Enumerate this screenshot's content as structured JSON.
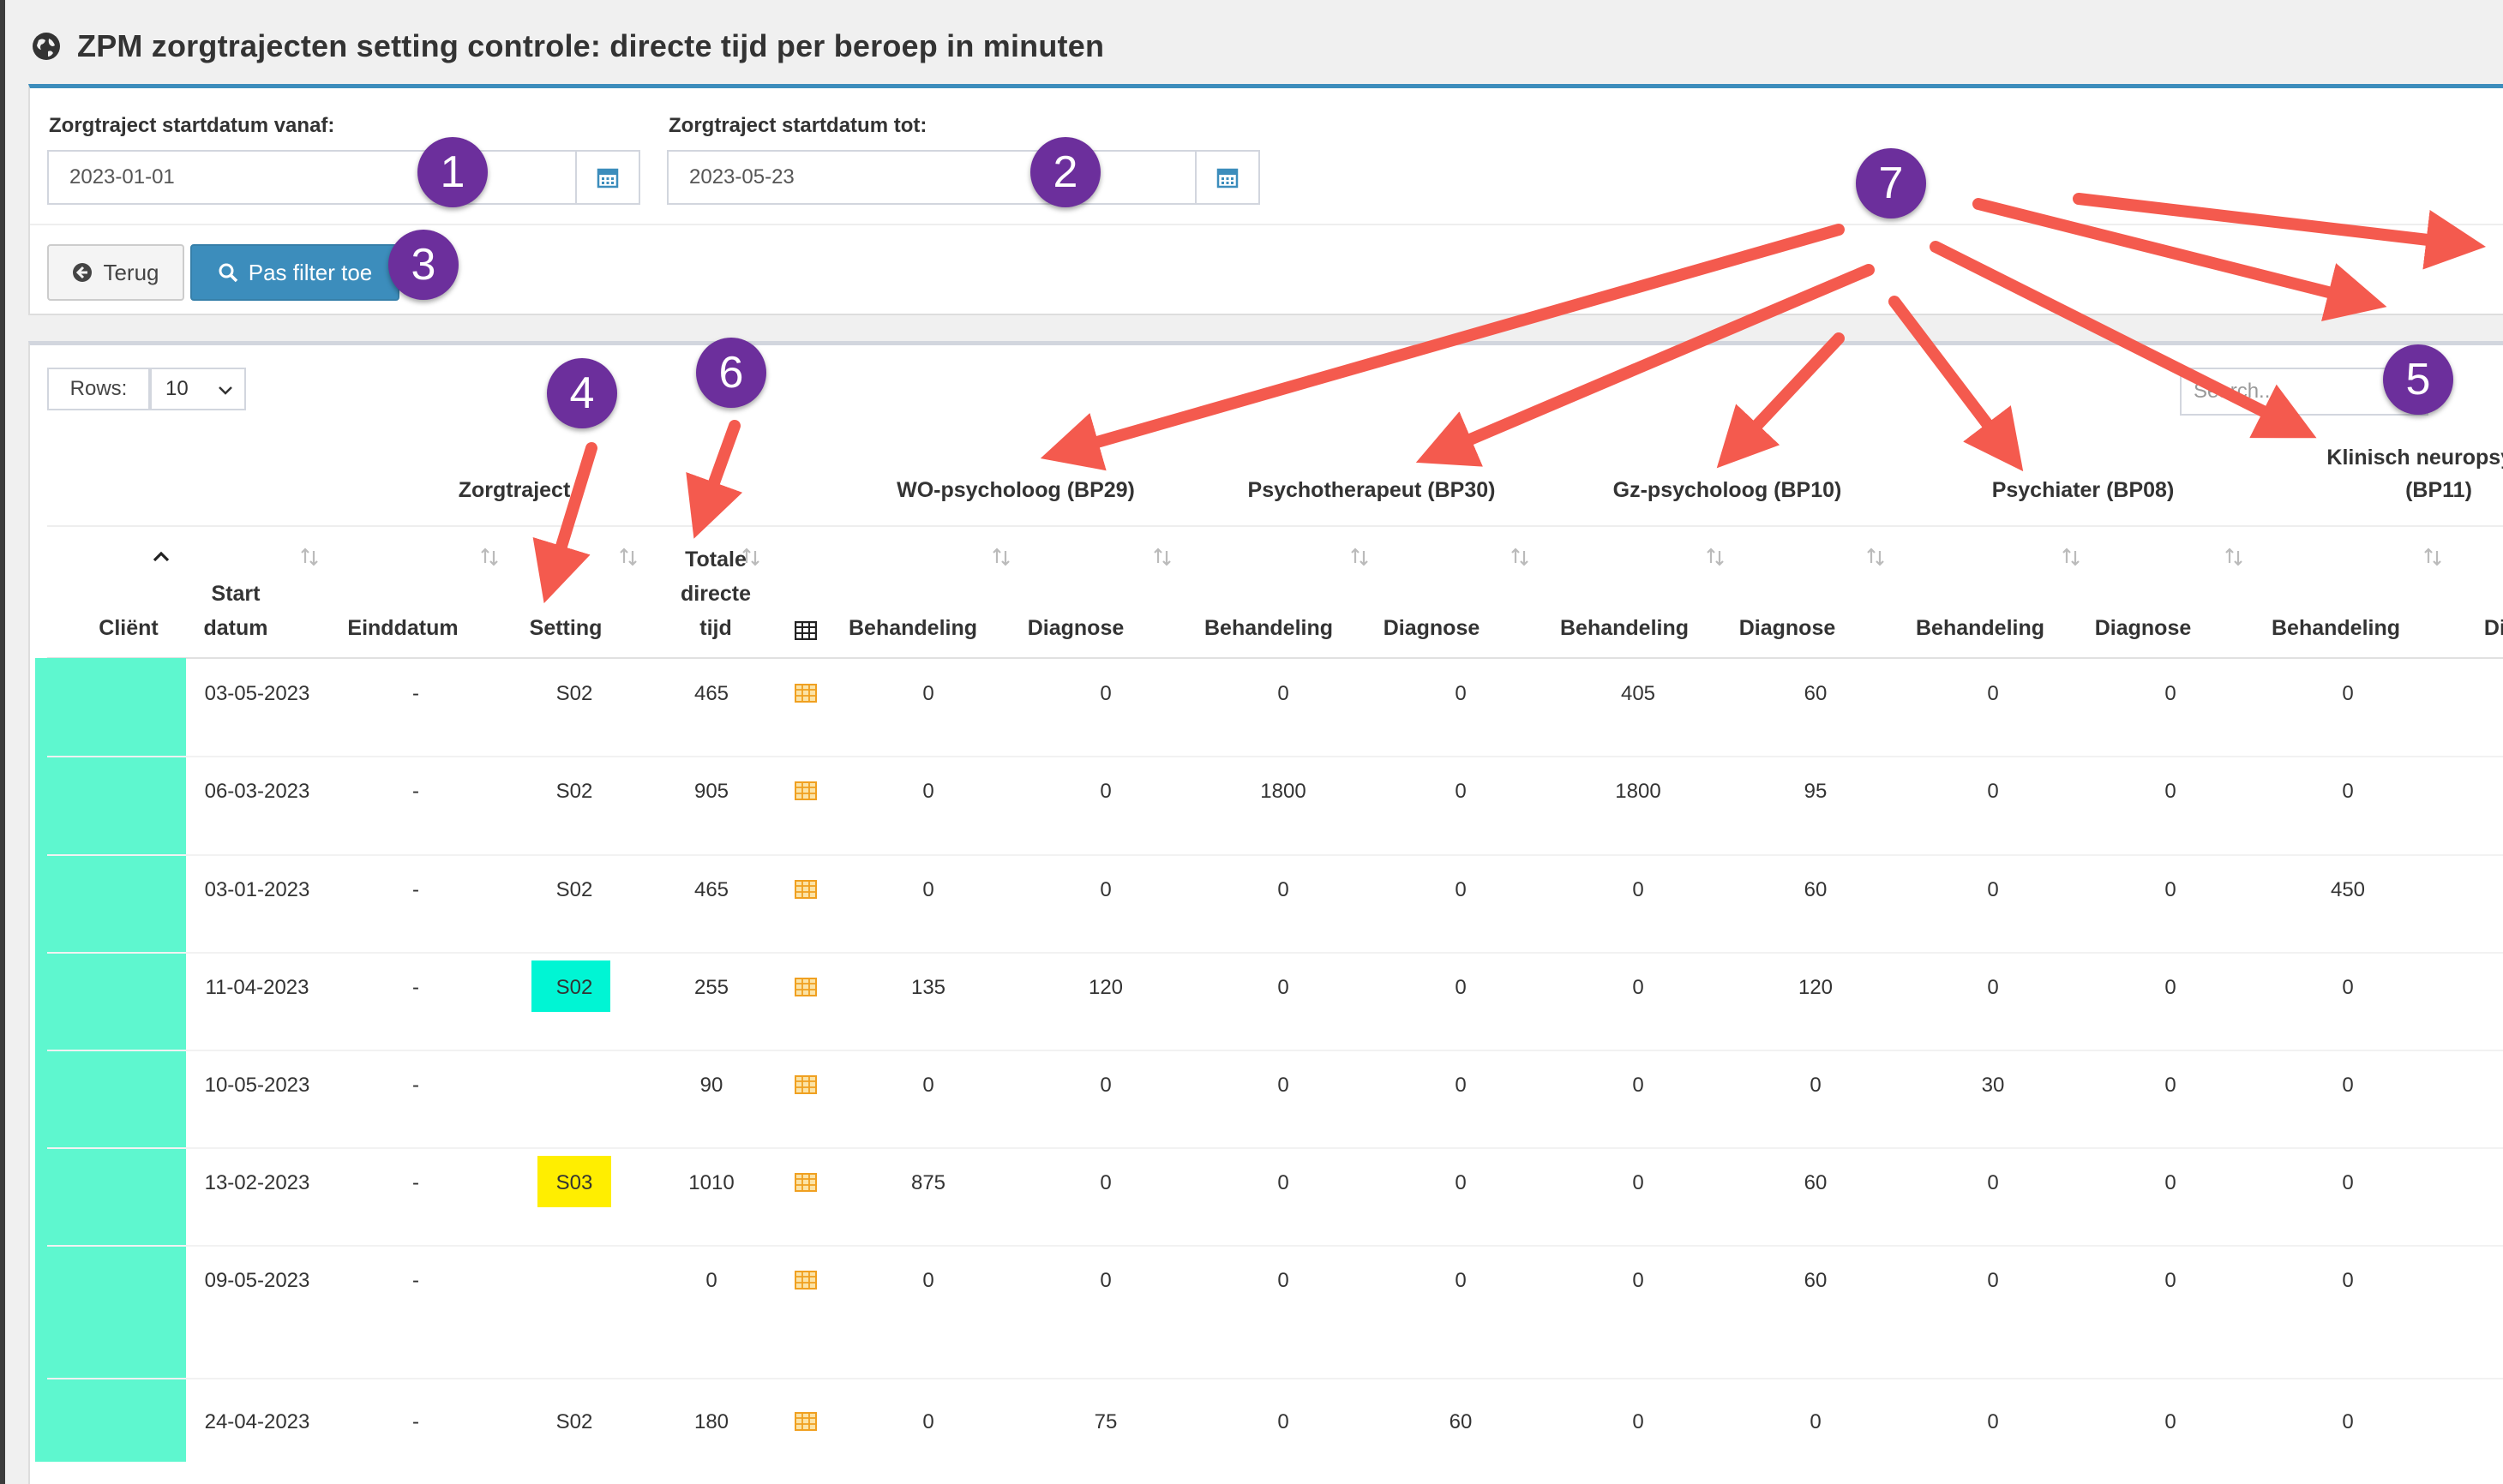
{
  "page": {
    "title": "ZPM zorgtrajecten setting controle: directe tijd per beroep in minuten",
    "icon": "globe-icon"
  },
  "filters": {
    "start_from_label": "Zorgtraject startdatum vanaf:",
    "start_from_value": "2023-01-01",
    "start_to_label": "Zorgtraject startdatum tot:",
    "start_to_value": "2023-05-23",
    "back_label": "Terug",
    "apply_label": "Pas filter toe"
  },
  "table": {
    "rows_label": "Rows:",
    "rows_value": "10",
    "search_placeholder": "Search...",
    "group_headers": {
      "zorgtraject": "Zorgtraject",
      "bp29": "WO-psycholoog (BP29)",
      "bp30": "Psychotherapeut (BP30)",
      "bp10": "Gz-psycholoog (BP10)",
      "bp08": "Psychiater (BP08)",
      "bp11_line1": "Klinisch neuropsycho",
      "bp11_line2": "(BP11)"
    },
    "columns": {
      "client": "Cliënt",
      "start_1": "Start",
      "start_2": "datum",
      "end": "Einddatum",
      "setting": "Setting",
      "total_1": "Totale",
      "total_2": "directe",
      "total_3": "tijd",
      "behandeling": "Behandeling",
      "diagnose": "Diagnose",
      "diag_cut": "Diag"
    },
    "rows": [
      {
        "start": "03-05-2023",
        "end": "-",
        "setting": "S02",
        "total": "465",
        "v": [
          "0",
          "0",
          "0",
          "0",
          "405",
          "60",
          "0",
          "0",
          "0"
        ]
      },
      {
        "start": "06-03-2023",
        "end": "-",
        "setting": "S02",
        "total": "905",
        "v": [
          "0",
          "0",
          "1800",
          "0",
          "1800",
          "95",
          "0",
          "0",
          "0"
        ]
      },
      {
        "start": "03-01-2023",
        "end": "-",
        "setting": "S02",
        "total": "465",
        "v": [
          "0",
          "0",
          "0",
          "0",
          "0",
          "60",
          "0",
          "0",
          "450"
        ]
      },
      {
        "start": "11-04-2023",
        "end": "-",
        "setting": "S02",
        "total": "255",
        "v": [
          "135",
          "120",
          "0",
          "0",
          "0",
          "120",
          "0",
          "0",
          "0"
        ]
      },
      {
        "start": "10-05-2023",
        "end": "-",
        "setting": "",
        "total": "90",
        "v": [
          "0",
          "0",
          "0",
          "0",
          "0",
          "0",
          "30",
          "0",
          "0"
        ]
      },
      {
        "start": "13-02-2023",
        "end": "-",
        "setting": "S03",
        "total": "1010",
        "v": [
          "875",
          "0",
          "0",
          "0",
          "0",
          "60",
          "0",
          "0",
          "0"
        ]
      },
      {
        "start": "09-05-2023",
        "end": "-",
        "setting": "",
        "total": "0",
        "v": [
          "0",
          "0",
          "0",
          "0",
          "0",
          "60",
          "0",
          "0",
          "0"
        ]
      },
      {
        "start": "24-04-2023",
        "end": "-",
        "setting": "S02",
        "total": "180",
        "v": [
          "0",
          "75",
          "0",
          "60",
          "0",
          "0",
          "0",
          "0",
          "0"
        ]
      }
    ]
  },
  "annotations": [
    "1",
    "2",
    "3",
    "4",
    "5",
    "6",
    "7"
  ],
  "colors": {
    "accent": "#3c8dbc",
    "badge": "#6c2f9c",
    "arrow": "#f45a4e",
    "client_bar": "#5ef7cf",
    "setting_cyan": "#00f5d4",
    "setting_yellow": "#ffee00"
  }
}
